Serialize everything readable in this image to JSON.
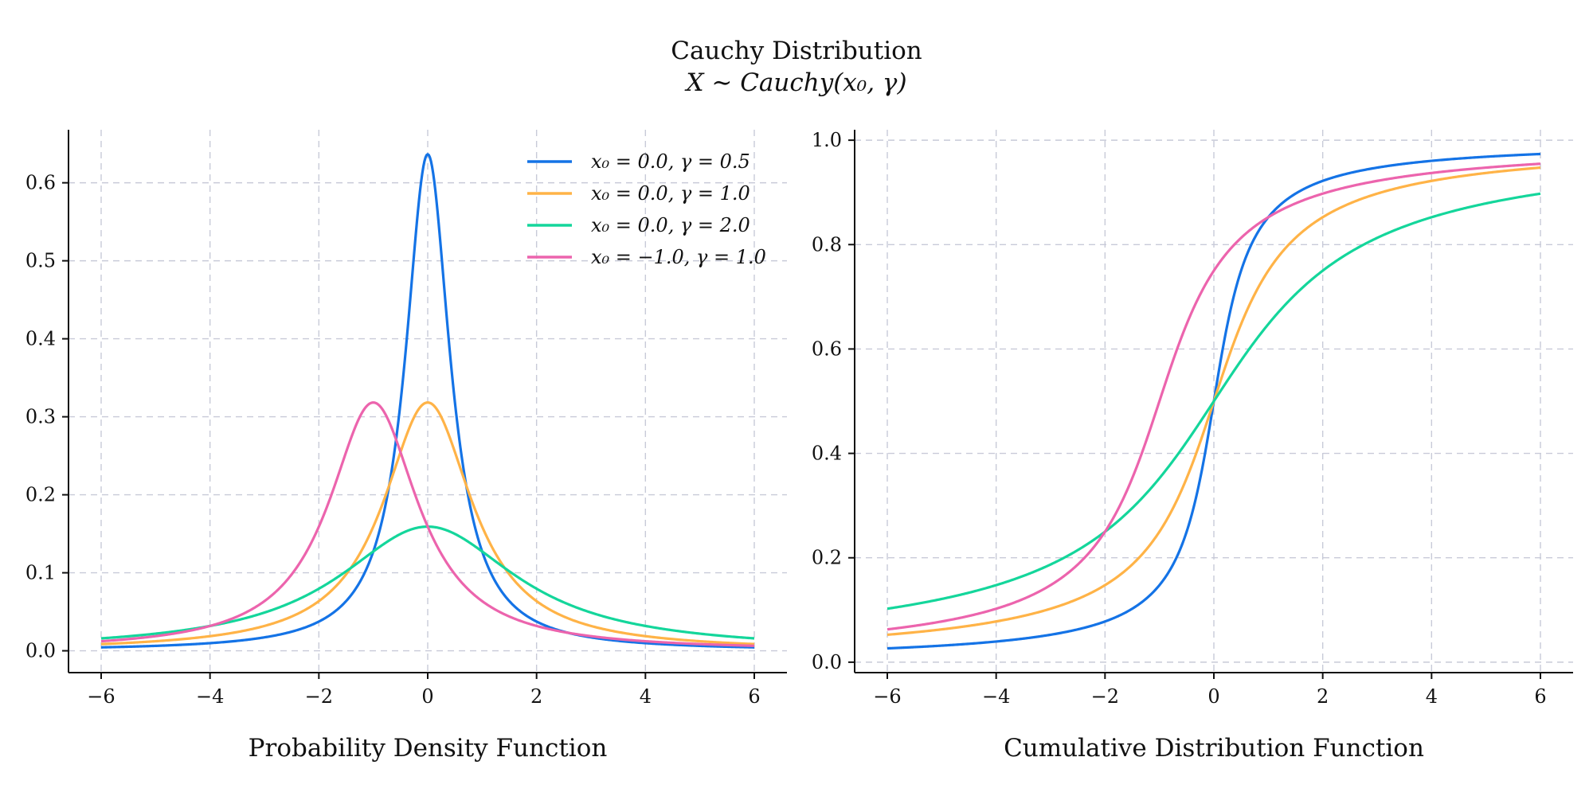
{
  "figure": {
    "title": "Cauchy Distribution",
    "subtitle": "X ∼ Cauchy(x₀, γ)"
  },
  "colors": {
    "blue": "#1473e6",
    "orange": "#ffb347",
    "green": "#14d69b",
    "pink": "#ec64ad",
    "grid": "#c8cad8"
  },
  "chart_data": [
    {
      "type": "line",
      "function": "pdf",
      "xlabel": "Probability Density Function",
      "ylabel": "",
      "xlim": [
        -6.6,
        6.6
      ],
      "ylim": [
        -0.028,
        0.668
      ],
      "xticks": [
        -6,
        -4,
        -2,
        0,
        2,
        4,
        6
      ],
      "xtick_labels": [
        "−6",
        "−4",
        "−2",
        "0",
        "2",
        "4",
        "6"
      ],
      "yticks": [
        0.0,
        0.1,
        0.2,
        0.3,
        0.4,
        0.5,
        0.6
      ],
      "ytick_labels": [
        "0.0",
        "0.1",
        "0.2",
        "0.3",
        "0.4",
        "0.5",
        "0.6"
      ],
      "grid": true,
      "legend": "top-right",
      "x": [
        -6,
        -5,
        -4,
        -3,
        -2,
        -1.5,
        -1,
        -0.5,
        -0.25,
        0,
        0.25,
        0.5,
        1,
        1.5,
        2,
        3,
        4,
        5,
        6
      ],
      "series": [
        {
          "name": "x₀ = 0.0, γ = 0.5",
          "x0": 0.0,
          "gamma": 0.5,
          "color": "#1473e6",
          "values": [
            0.0044,
            0.0063,
            0.0099,
            0.0174,
            0.0374,
            0.0637,
            0.1273,
            0.3183,
            0.5093,
            0.6366,
            0.5093,
            0.3183,
            0.1273,
            0.0637,
            0.0374,
            0.0174,
            0.0099,
            0.0063,
            0.0044
          ]
        },
        {
          "name": "x₀ = 0.0, γ = 1.0",
          "x0": 0.0,
          "gamma": 1.0,
          "color": "#ffb347",
          "values": [
            0.0086,
            0.0122,
            0.0187,
            0.0318,
            0.0637,
            0.0979,
            0.1592,
            0.2546,
            0.2996,
            0.3183,
            0.2996,
            0.2546,
            0.1592,
            0.0979,
            0.0637,
            0.0318,
            0.0187,
            0.0122,
            0.0086
          ]
        },
        {
          "name": "x₀ = 0.0, γ = 2.0",
          "x0": 0.0,
          "gamma": 2.0,
          "color": "#14d69b",
          "values": [
            0.0159,
            0.022,
            0.0318,
            0.049,
            0.0796,
            0.1019,
            0.1273,
            0.1498,
            0.1567,
            0.1592,
            0.1567,
            0.1498,
            0.1273,
            0.1019,
            0.0796,
            0.049,
            0.0318,
            0.022,
            0.0159
          ]
        },
        {
          "name": "x₀ = −1.0, γ = 1.0",
          "x0": -1.0,
          "gamma": 1.0,
          "color": "#ec64ad",
          "values": [
            0.0122,
            0.0187,
            0.0318,
            0.0637,
            0.1592,
            0.2546,
            0.3183,
            0.2546,
            0.2037,
            0.1592,
            0.1222,
            0.0979,
            0.0637,
            0.0438,
            0.0318,
            0.0187,
            0.0122,
            0.0086,
            0.0064
          ]
        }
      ]
    },
    {
      "type": "line",
      "function": "cdf",
      "xlabel": "Cumulative Distribution Function",
      "ylabel": "",
      "xlim": [
        -6.6,
        6.6
      ],
      "ylim": [
        -0.02,
        1.02
      ],
      "xticks": [
        -6,
        -4,
        -2,
        0,
        2,
        4,
        6
      ],
      "xtick_labels": [
        "−6",
        "−4",
        "−2",
        "0",
        "2",
        "4",
        "6"
      ],
      "yticks": [
        0.0,
        0.2,
        0.4,
        0.6,
        0.8,
        1.0
      ],
      "ytick_labels": [
        "0.0",
        "0.2",
        "0.4",
        "0.6",
        "0.8",
        "1.0"
      ],
      "grid": true,
      "x": [
        -6,
        -5,
        -4,
        -3,
        -2,
        -1.5,
        -1,
        -0.5,
        -0.25,
        0,
        0.25,
        0.5,
        1,
        1.5,
        2,
        3,
        4,
        5,
        6
      ],
      "series": [
        {
          "name": "x₀ = 0.0, γ = 0.5",
          "x0": 0.0,
          "gamma": 0.5,
          "color": "#1473e6",
          "values": [
            0.0265,
            0.0317,
            0.0396,
            0.0526,
            0.078,
            0.1024,
            0.1476,
            0.25,
            0.3524,
            0.5,
            0.6476,
            0.75,
            0.8524,
            0.8976,
            0.922,
            0.9474,
            0.9604,
            0.9683,
            0.9735
          ]
        },
        {
          "name": "x₀ = 0.0, γ = 1.0",
          "x0": 0.0,
          "gamma": 1.0,
          "color": "#ffb347",
          "values": [
            0.0526,
            0.0628,
            0.078,
            0.1024,
            0.1476,
            0.1872,
            0.25,
            0.3524,
            0.422,
            0.5,
            0.578,
            0.6476,
            0.75,
            0.8128,
            0.8524,
            0.8976,
            0.922,
            0.9372,
            0.9474
          ]
        },
        {
          "name": "x₀ = 0.0, γ = 2.0",
          "x0": 0.0,
          "gamma": 2.0,
          "color": "#14d69b",
          "values": [
            0.1024,
            0.1211,
            0.1476,
            0.1872,
            0.25,
            0.2952,
            0.3524,
            0.422,
            0.4604,
            0.5,
            0.5396,
            0.578,
            0.6476,
            0.7048,
            0.75,
            0.8128,
            0.8524,
            0.8789,
            0.8976
          ]
        },
        {
          "name": "x₀ = −1.0, γ = 1.0",
          "x0": -1.0,
          "gamma": 1.0,
          "color": "#ec64ad",
          "values": [
            0.0628,
            0.078,
            0.1024,
            0.1476,
            0.25,
            0.3524,
            0.5,
            0.6476,
            0.7048,
            0.75,
            0.782,
            0.8128,
            0.8524,
            0.8789,
            0.8976,
            0.922,
            0.9372,
            0.9474,
            0.9548
          ]
        }
      ]
    }
  ]
}
